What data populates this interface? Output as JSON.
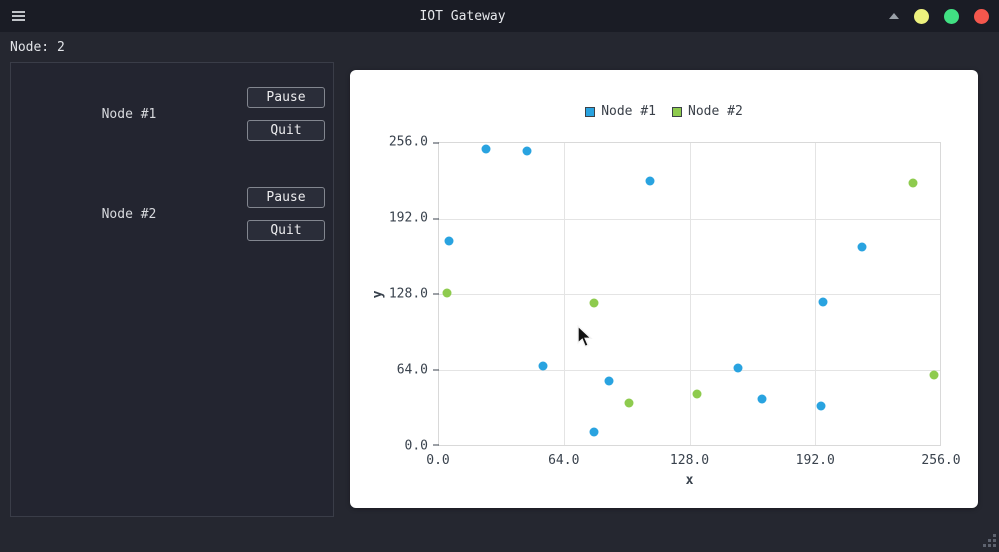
{
  "window": {
    "title": "IOT Gateway",
    "menu_icon": "hamburger",
    "controls": {
      "minimize_color": "#edf17e",
      "maximize_color": "#41e083",
      "close_color": "#f4574d"
    }
  },
  "status": {
    "label": "Node: 2"
  },
  "nodes": [
    {
      "name": "Node #1",
      "buttons": {
        "pause": "Pause",
        "quit": "Quit"
      }
    },
    {
      "name": "Node #2",
      "buttons": {
        "pause": "Pause",
        "quit": "Quit"
      }
    }
  ],
  "chart_data": {
    "type": "scatter",
    "title": "",
    "xlabel": "x",
    "ylabel": "y",
    "xlim": [
      0,
      256
    ],
    "ylim": [
      0,
      256
    ],
    "grid": true,
    "legend_position": "top-center",
    "x_ticks": [
      "0.0",
      "64.0",
      "128.0",
      "192.0",
      "256.0"
    ],
    "y_ticks": [
      "256.0",
      "192.0",
      "128.0",
      "64.0",
      "0.0"
    ],
    "series": [
      {
        "name": "Node #1",
        "color": "#29a3e0",
        "points": [
          [
            24,
            251
          ],
          [
            45,
            249
          ],
          [
            5,
            173
          ],
          [
            108,
            224
          ],
          [
            216,
            168
          ],
          [
            196,
            121
          ],
          [
            53,
            67
          ],
          [
            87,
            54
          ],
          [
            79,
            11
          ],
          [
            153,
            65
          ],
          [
            165,
            39
          ],
          [
            195,
            33
          ]
        ]
      },
      {
        "name": "Node #2",
        "color": "#8ecb4e",
        "points": [
          [
            4,
            129
          ],
          [
            79,
            120
          ],
          [
            97,
            36
          ],
          [
            132,
            43
          ],
          [
            242,
            222
          ],
          [
            253,
            59
          ]
        ]
      }
    ]
  }
}
